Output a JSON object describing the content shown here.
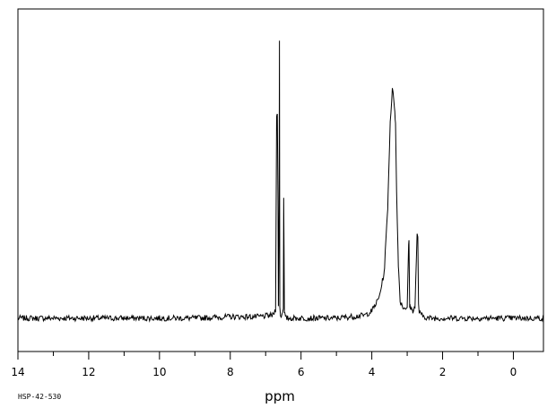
{
  "chart_data": {
    "type": "line",
    "title": "",
    "xlabel": "ppm",
    "ylabel": "",
    "sample_code": "HSP-42-530",
    "x_reversed": true,
    "xlim": [
      14.0,
      -0.85
    ],
    "ylim": [
      0,
      1
    ],
    "grid": false,
    "legend": "none",
    "xticks": [
      14,
      12,
      10,
      8,
      6,
      4,
      2,
      0
    ],
    "xtick_labels": [
      "14",
      "12",
      "10",
      "8",
      "6",
      "4",
      "2",
      "0"
    ],
    "series": [
      {
        "line_color": "#000000",
        "x": [
          14.0,
          9.0,
          8.0,
          7.2,
          6.8,
          6.72,
          6.69,
          6.67,
          6.65,
          6.64,
          6.62,
          6.61,
          6.6,
          6.58,
          6.56,
          6.54,
          6.5,
          6.49,
          6.47,
          6.44,
          5.0,
          4.2,
          4.0,
          3.8,
          3.65,
          3.55,
          3.48,
          3.42,
          3.38,
          3.35,
          3.33,
          3.3,
          3.25,
          3.2,
          3.1,
          3.0,
          2.96,
          2.95,
          2.93,
          2.91,
          2.85,
          2.78,
          2.72,
          2.7,
          2.68,
          2.66,
          2.6,
          2.4,
          2.0,
          0.0,
          -0.85
        ],
        "y": [
          0.01,
          0.01,
          0.015,
          0.015,
          0.02,
          0.04,
          0.72,
          0.72,
          0.4,
          0.05,
          0.4,
          0.99,
          0.05,
          0.02,
          0.02,
          0.02,
          0.05,
          0.44,
          0.03,
          0.01,
          0.01,
          0.02,
          0.035,
          0.08,
          0.17,
          0.4,
          0.7,
          0.81,
          0.78,
          0.74,
          0.69,
          0.45,
          0.2,
          0.07,
          0.045,
          0.05,
          0.26,
          0.28,
          0.05,
          0.05,
          0.035,
          0.05,
          0.3,
          0.3,
          0.06,
          0.03,
          0.02,
          0.01,
          0.01,
          0.01,
          0.01
        ]
      }
    ]
  }
}
